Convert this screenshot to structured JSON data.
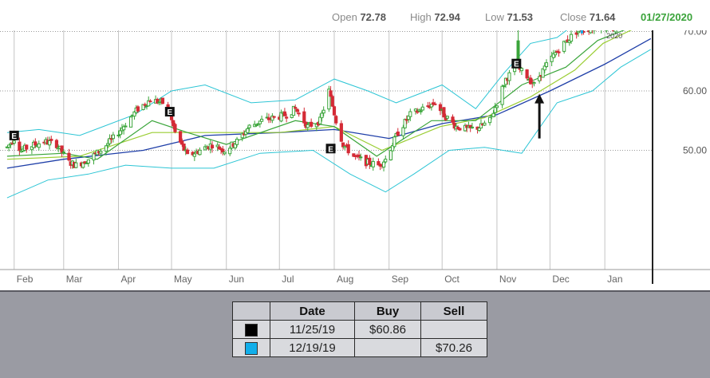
{
  "header": {
    "open_label": "Open",
    "open_value": "72.78",
    "high_label": "High",
    "high_value": "72.94",
    "low_label": "Low",
    "low_value": "71.53",
    "close_label": "Close",
    "close_value": "71.64",
    "date": "01/27/2020"
  },
  "chart_data": {
    "type": "candlestick",
    "title": "",
    "x_tick_labels": [
      "Feb",
      "Mar",
      "Apr",
      "May",
      "Jun",
      "Jul",
      "Aug",
      "Sep",
      "Oct",
      "Nov",
      "Dec",
      "Jan"
    ],
    "year_label": "2020",
    "y_tick_labels": [
      "70.00",
      "60.00",
      "50.00"
    ],
    "y_ticks": [
      70,
      60,
      50
    ],
    "ylim": [
      40,
      75
    ],
    "grid": true,
    "earnings_markers": [
      {
        "date": "2019-02-01",
        "value": 52.5,
        "label": "E"
      },
      {
        "date": "2019-04-30",
        "value": 56.5,
        "label": "E"
      },
      {
        "date": "2019-07-30",
        "value": 50.3,
        "label": "E"
      },
      {
        "date": "2019-11-12",
        "value": 64.6,
        "label": "E"
      }
    ],
    "buy_arrow": {
      "date": "2019-11-25",
      "value": 60.86
    },
    "sell_arrow": {
      "date": "2019-12-19",
      "value": 70.26
    },
    "price_path": [
      [
        "2019-01-28",
        50.5
      ],
      [
        "2019-02-01",
        52
      ],
      [
        "2019-02-05",
        50
      ],
      [
        "2019-02-11",
        50.8
      ],
      [
        "2019-02-18",
        51.5
      ],
      [
        "2019-02-25",
        51
      ],
      [
        "2019-03-04",
        48
      ],
      [
        "2019-03-08",
        47.5
      ],
      [
        "2019-03-15",
        48.5
      ],
      [
        "2019-03-22",
        50
      ],
      [
        "2019-03-29",
        52
      ],
      [
        "2019-04-05",
        54.5
      ],
      [
        "2019-04-12",
        57
      ],
      [
        "2019-04-19",
        58.5
      ],
      [
        "2019-04-26",
        58
      ],
      [
        "2019-04-30",
        56
      ],
      [
        "2019-05-03",
        53
      ],
      [
        "2019-05-10",
        49
      ],
      [
        "2019-05-17",
        50
      ],
      [
        "2019-05-24",
        51
      ],
      [
        "2019-05-31",
        50
      ],
      [
        "2019-06-07",
        51.5
      ],
      [
        "2019-06-14",
        54
      ],
      [
        "2019-06-21",
        55
      ],
      [
        "2019-06-28",
        55.5
      ],
      [
        "2019-07-05",
        56
      ],
      [
        "2019-07-10",
        57
      ],
      [
        "2019-07-17",
        54
      ],
      [
        "2019-07-24",
        55
      ],
      [
        "2019-07-29",
        60
      ],
      [
        "2019-08-02",
        55
      ],
      [
        "2019-08-06",
        51
      ],
      [
        "2019-08-12",
        49
      ],
      [
        "2019-08-19",
        48
      ],
      [
        "2019-08-26",
        47.5
      ],
      [
        "2019-08-30",
        48.5
      ],
      [
        "2019-09-06",
        53
      ],
      [
        "2019-09-13",
        56
      ],
      [
        "2019-09-20",
        57
      ],
      [
        "2019-09-27",
        58
      ],
      [
        "2019-10-02",
        56
      ],
      [
        "2019-10-09",
        54
      ],
      [
        "2019-10-16",
        53.5
      ],
      [
        "2019-10-23",
        54
      ],
      [
        "2019-10-28",
        55
      ],
      [
        "2019-11-01",
        58
      ],
      [
        "2019-11-06",
        62
      ],
      [
        "2019-11-12",
        64
      ],
      [
        "2019-11-18",
        62.5
      ],
      [
        "2019-11-22",
        61
      ],
      [
        "2019-11-26",
        63
      ],
      [
        "2019-12-03",
        66
      ],
      [
        "2019-12-09",
        68
      ],
      [
        "2019-12-16",
        70
      ],
      [
        "2019-12-23",
        70.5
      ],
      [
        "2019-12-30",
        71
      ],
      [
        "2020-01-06",
        70.5
      ],
      [
        "2020-01-13",
        72
      ],
      [
        "2020-01-21",
        73
      ],
      [
        "2020-01-27",
        71.6
      ]
    ],
    "ma_fast": [
      [
        "2019-01-28",
        49
      ],
      [
        "2019-03-01",
        49.5
      ],
      [
        "2019-03-20",
        48.5
      ],
      [
        "2019-04-20",
        55
      ],
      [
        "2019-05-10",
        53
      ],
      [
        "2019-06-01",
        51
      ],
      [
        "2019-07-10",
        55
      ],
      [
        "2019-08-01",
        54
      ],
      [
        "2019-08-25",
        49
      ],
      [
        "2019-09-25",
        55
      ],
      [
        "2019-10-20",
        55
      ],
      [
        "2019-11-15",
        61
      ],
      [
        "2019-12-10",
        64
      ],
      [
        "2019-12-28",
        68.5
      ],
      [
        "2020-01-27",
        72
      ]
    ],
    "ma_mid": [
      [
        "2019-01-28",
        48.5
      ],
      [
        "2019-03-10",
        49
      ],
      [
        "2019-04-20",
        53
      ],
      [
        "2019-05-20",
        53
      ],
      [
        "2019-07-01",
        53
      ],
      [
        "2019-08-01",
        54
      ],
      [
        "2019-08-28",
        50
      ],
      [
        "2019-09-30",
        54
      ],
      [
        "2019-10-25",
        55.5
      ],
      [
        "2019-11-20",
        59
      ],
      [
        "2019-12-15",
        63.5
      ],
      [
        "2019-12-31",
        68
      ],
      [
        "2020-01-27",
        71.8
      ]
    ],
    "ma_slow": [
      [
        "2019-01-28",
        47
      ],
      [
        "2019-03-01",
        48.5
      ],
      [
        "2019-04-15",
        50
      ],
      [
        "2019-05-20",
        52.5
      ],
      [
        "2019-07-01",
        53
      ],
      [
        "2019-08-01",
        53.5
      ],
      [
        "2019-09-01",
        52
      ],
      [
        "2019-10-01",
        54.5
      ],
      [
        "2019-11-01",
        56
      ],
      [
        "2019-12-01",
        60
      ],
      [
        "2020-01-01",
        64.5
      ],
      [
        "2020-01-27",
        68.8
      ]
    ],
    "bb_upper": [
      [
        "2019-01-28",
        53
      ],
      [
        "2019-02-15",
        53.5
      ],
      [
        "2019-03-10",
        52.5
      ],
      [
        "2019-04-10",
        56
      ],
      [
        "2019-05-01",
        60
      ],
      [
        "2019-05-20",
        61
      ],
      [
        "2019-06-15",
        58
      ],
      [
        "2019-07-10",
        58.5
      ],
      [
        "2019-08-01",
        62
      ],
      [
        "2019-08-20",
        60
      ],
      [
        "2019-09-05",
        58
      ],
      [
        "2019-10-01",
        61
      ],
      [
        "2019-10-20",
        57
      ],
      [
        "2019-11-05",
        63
      ],
      [
        "2019-11-20",
        68
      ],
      [
        "2019-12-05",
        69
      ],
      [
        "2019-12-25",
        73.5
      ],
      [
        "2020-01-10",
        74
      ],
      [
        "2020-01-27",
        75.5
      ]
    ],
    "bb_lower": [
      [
        "2019-01-28",
        42
      ],
      [
        "2019-02-20",
        45
      ],
      [
        "2019-03-15",
        46
      ],
      [
        "2019-04-05",
        47.5
      ],
      [
        "2019-05-01",
        47
      ],
      [
        "2019-05-25",
        47
      ],
      [
        "2019-06-20",
        49.5
      ],
      [
        "2019-07-20",
        50
      ],
      [
        "2019-08-10",
        46
      ],
      [
        "2019-08-30",
        43
      ],
      [
        "2019-09-15",
        46
      ],
      [
        "2019-10-05",
        50
      ],
      [
        "2019-10-25",
        50.5
      ],
      [
        "2019-11-15",
        49.5
      ],
      [
        "2019-12-05",
        58
      ],
      [
        "2019-12-25",
        60
      ],
      [
        "2020-01-10",
        64
      ],
      [
        "2020-01-27",
        67
      ]
    ]
  },
  "trades_table": {
    "headers": [
      "",
      "Date",
      "Buy",
      "Sell"
    ],
    "rows": [
      {
        "color": "#000000",
        "date": "11/25/19",
        "buy": "$60.86",
        "sell": ""
      },
      {
        "color": "#11aeea",
        "date": "12/19/19",
        "buy": "",
        "sell": "$70.26"
      }
    ]
  },
  "colors": {
    "up": "#3aa53a",
    "down": "#d42b36",
    "ma_fast": "#3aa53a",
    "ma_mid": "#9acd32",
    "ma_slow": "#1f3fa8",
    "bollinger": "#2cc5d5",
    "buy_arrow": "#111111",
    "sell_arrow": "#11aeea"
  }
}
